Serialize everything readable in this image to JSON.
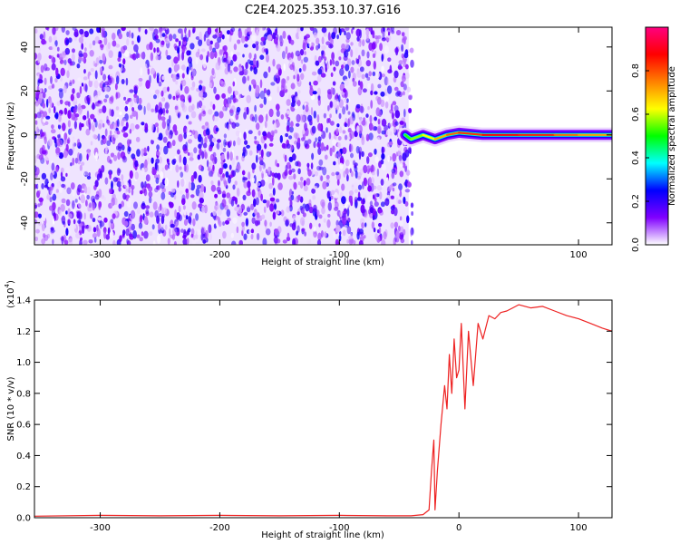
{
  "chart_data": [
    {
      "type": "heatmap",
      "title": "C2E4.2025.353.10.37.G16",
      "xlabel": "Height of straight line (km)",
      "ylabel": "Frequency (Hz)",
      "xlim": [
        -355,
        128
      ],
      "ylim": [
        -50,
        49
      ],
      "xticks": [
        -300,
        -200,
        -100,
        0,
        100
      ],
      "yticks": [
        -40,
        -20,
        0,
        20,
        40
      ],
      "xtick_labels": [
        "-300",
        "-200",
        "-100",
        "0",
        "100"
      ],
      "ytick_labels": [
        "-40",
        "-20",
        "0",
        "20",
        "40"
      ],
      "noise_region": {
        "x": [
          -355,
          -42
        ],
        "amplitude_range": [
          0.0,
          0.2
        ]
      },
      "signal_trace": [
        {
          "x": -45,
          "y": 0,
          "amp": 0.5
        },
        {
          "x": -40,
          "y": -2,
          "amp": 0.55
        },
        {
          "x": -30,
          "y": 0,
          "amp": 0.6
        },
        {
          "x": -20,
          "y": -2,
          "amp": 0.65
        },
        {
          "x": -10,
          "y": 0,
          "amp": 0.75
        },
        {
          "x": 0,
          "y": 1,
          "amp": 0.8
        },
        {
          "x": 20,
          "y": 0,
          "amp": 0.85
        },
        {
          "x": 50,
          "y": 0,
          "amp": 0.9
        },
        {
          "x": 80,
          "y": 0,
          "amp": 0.8
        },
        {
          "x": 100,
          "y": 0,
          "amp": 0.75
        },
        {
          "x": 128,
          "y": 0,
          "amp": 0.7
        }
      ],
      "colorbar": {
        "label": "Normalized spectral amplitude",
        "range": [
          0.0,
          1.0
        ],
        "ticks": [
          "0.0",
          "0.2",
          "0.4",
          "0.6",
          "0.8"
        ],
        "colors": [
          "#ffffff",
          "#8000ff",
          "#0000ff",
          "#00ffff",
          "#00ff00",
          "#ffff00",
          "#ff8000",
          "#ff0000",
          "#ff0080"
        ]
      },
      "grid": false
    },
    {
      "type": "line",
      "xlabel": "Height of straight line (km)",
      "ylabel": "SNR (10 * v/v)",
      "scale_label": "(x10",
      "scale_exponent": "4",
      "scale_close": ")",
      "xlim": [
        -355,
        128
      ],
      "ylim": [
        0.0,
        1.4
      ],
      "xticks": [
        -300,
        -200,
        -100,
        0,
        100
      ],
      "yticks": [
        0.0,
        0.2,
        0.4,
        0.6,
        0.8,
        1.0,
        1.2,
        1.4
      ],
      "xtick_labels": [
        "-300",
        "-200",
        "-100",
        "0",
        "100"
      ],
      "ytick_labels": [
        "0.0",
        "0.2",
        "0.4",
        "0.6",
        "0.8",
        "1.0",
        "1.2",
        "1.4"
      ],
      "line_color": "#ee2222",
      "series": [
        {
          "x": [
            -355,
            -300,
            -250,
            -200,
            -150,
            -100,
            -60,
            -40,
            -30,
            -25,
            -23,
            -21,
            -20,
            -18,
            -15,
            -12,
            -10,
            -8,
            -6,
            -4,
            -2,
            0,
            2,
            5,
            8,
            12,
            16,
            20,
            25,
            30,
            35,
            40,
            45,
            50,
            60,
            70,
            80,
            90,
            100,
            110,
            120,
            128
          ],
          "y": [
            0.01,
            0.015,
            0.012,
            0.015,
            0.012,
            0.015,
            0.012,
            0.012,
            0.02,
            0.05,
            0.3,
            0.5,
            0.05,
            0.3,
            0.6,
            0.85,
            0.7,
            1.05,
            0.8,
            1.15,
            0.9,
            0.95,
            1.25,
            0.7,
            1.2,
            0.85,
            1.25,
            1.15,
            1.3,
            1.28,
            1.32,
            1.33,
            1.35,
            1.37,
            1.35,
            1.36,
            1.33,
            1.3,
            1.28,
            1.25,
            1.22,
            1.2
          ]
        }
      ],
      "grid": false
    }
  ]
}
